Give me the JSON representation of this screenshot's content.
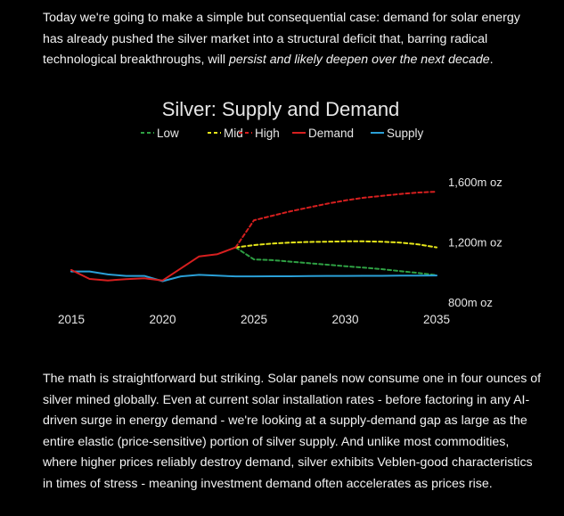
{
  "intro": {
    "pre": "Today we're going to make a simple but consequential case: demand for solar energy has already pushed the silver market into a structural deficit that, barring radical technological breakthroughs, will ",
    "emph": "persist and likely deepen over the next decade",
    "post": "."
  },
  "outro": "The math is straightforward but striking. Solar panels now consume one in four ounces of silver mined globally. Even at current solar installation rates - before factoring in any AI-driven surge in energy demand - we're looking at a supply-demand gap as large as the entire elastic (price-sensitive) portion of silver supply. And unlike most commodities, where higher prices reliably destroy demand, silver exhibits Veblen-good characteristics in times of stress - meaning investment demand often accelerates as prices rise.",
  "colors": {
    "low": "#2ea043",
    "mid": "#e6e619",
    "high": "#d61f1f",
    "demand": "#d61f1f",
    "supply": "#2a9fd6"
  },
  "chart_data": {
    "type": "line",
    "title": "Silver: Supply and Demand",
    "xlabel": "",
    "ylabel": "",
    "xlim": [
      2015,
      2035
    ],
    "ylim": [
      800,
      1600
    ],
    "x_ticks": [
      "2015",
      "2020",
      "2025",
      "2030",
      "2035"
    ],
    "y_ticks": [
      {
        "value": 1600,
        "label": "1,600m oz"
      },
      {
        "value": 1200,
        "label": "1,200m oz"
      },
      {
        "value": 800,
        "label": "800m oz"
      }
    ],
    "legend": [
      "Low",
      "Mid",
      "High",
      "Demand",
      "Supply"
    ],
    "legend_position": "top",
    "series": [
      {
        "name": "Demand",
        "key": "demand",
        "dash": false,
        "x": [
          2015,
          2016,
          2017,
          2018,
          2019,
          2020,
          2021,
          2022,
          2023,
          2024
        ],
        "values": [
          1020,
          960,
          950,
          958,
          965,
          950,
          1030,
          1110,
          1125,
          1170
        ]
      },
      {
        "name": "Supply",
        "key": "supply",
        "dash": false,
        "x": [
          2015,
          2016,
          2017,
          2018,
          2019,
          2020,
          2021,
          2022,
          2023,
          2024,
          2025,
          2026,
          2027,
          2028,
          2029,
          2030,
          2031,
          2032,
          2033,
          2034,
          2035
        ],
        "values": [
          1010,
          1010,
          990,
          980,
          980,
          945,
          977,
          987,
          982,
          977,
          977,
          978,
          978,
          979,
          980,
          980,
          981,
          981,
          982,
          982,
          983
        ]
      },
      {
        "name": "Low",
        "key": "low",
        "dash": true,
        "x": [
          2024,
          2025,
          2026,
          2027,
          2028,
          2029,
          2030,
          2031,
          2032,
          2033,
          2034,
          2035
        ],
        "values": [
          1170,
          1090,
          1085,
          1075,
          1065,
          1055,
          1045,
          1035,
          1025,
          1012,
          1000,
          985
        ]
      },
      {
        "name": "Mid",
        "key": "mid",
        "dash": true,
        "x": [
          2024,
          2025,
          2026,
          2027,
          2028,
          2029,
          2030,
          2031,
          2032,
          2033,
          2034,
          2035
        ],
        "values": [
          1170,
          1185,
          1195,
          1202,
          1206,
          1208,
          1210,
          1210,
          1208,
          1202,
          1190,
          1170
        ]
      },
      {
        "name": "High",
        "key": "high",
        "dash": true,
        "x": [
          2024,
          2025,
          2026,
          2027,
          2028,
          2029,
          2030,
          2031,
          2032,
          2033,
          2034,
          2035
        ],
        "values": [
          1170,
          1350,
          1380,
          1410,
          1435,
          1460,
          1482,
          1500,
          1512,
          1525,
          1535,
          1540
        ]
      }
    ]
  }
}
